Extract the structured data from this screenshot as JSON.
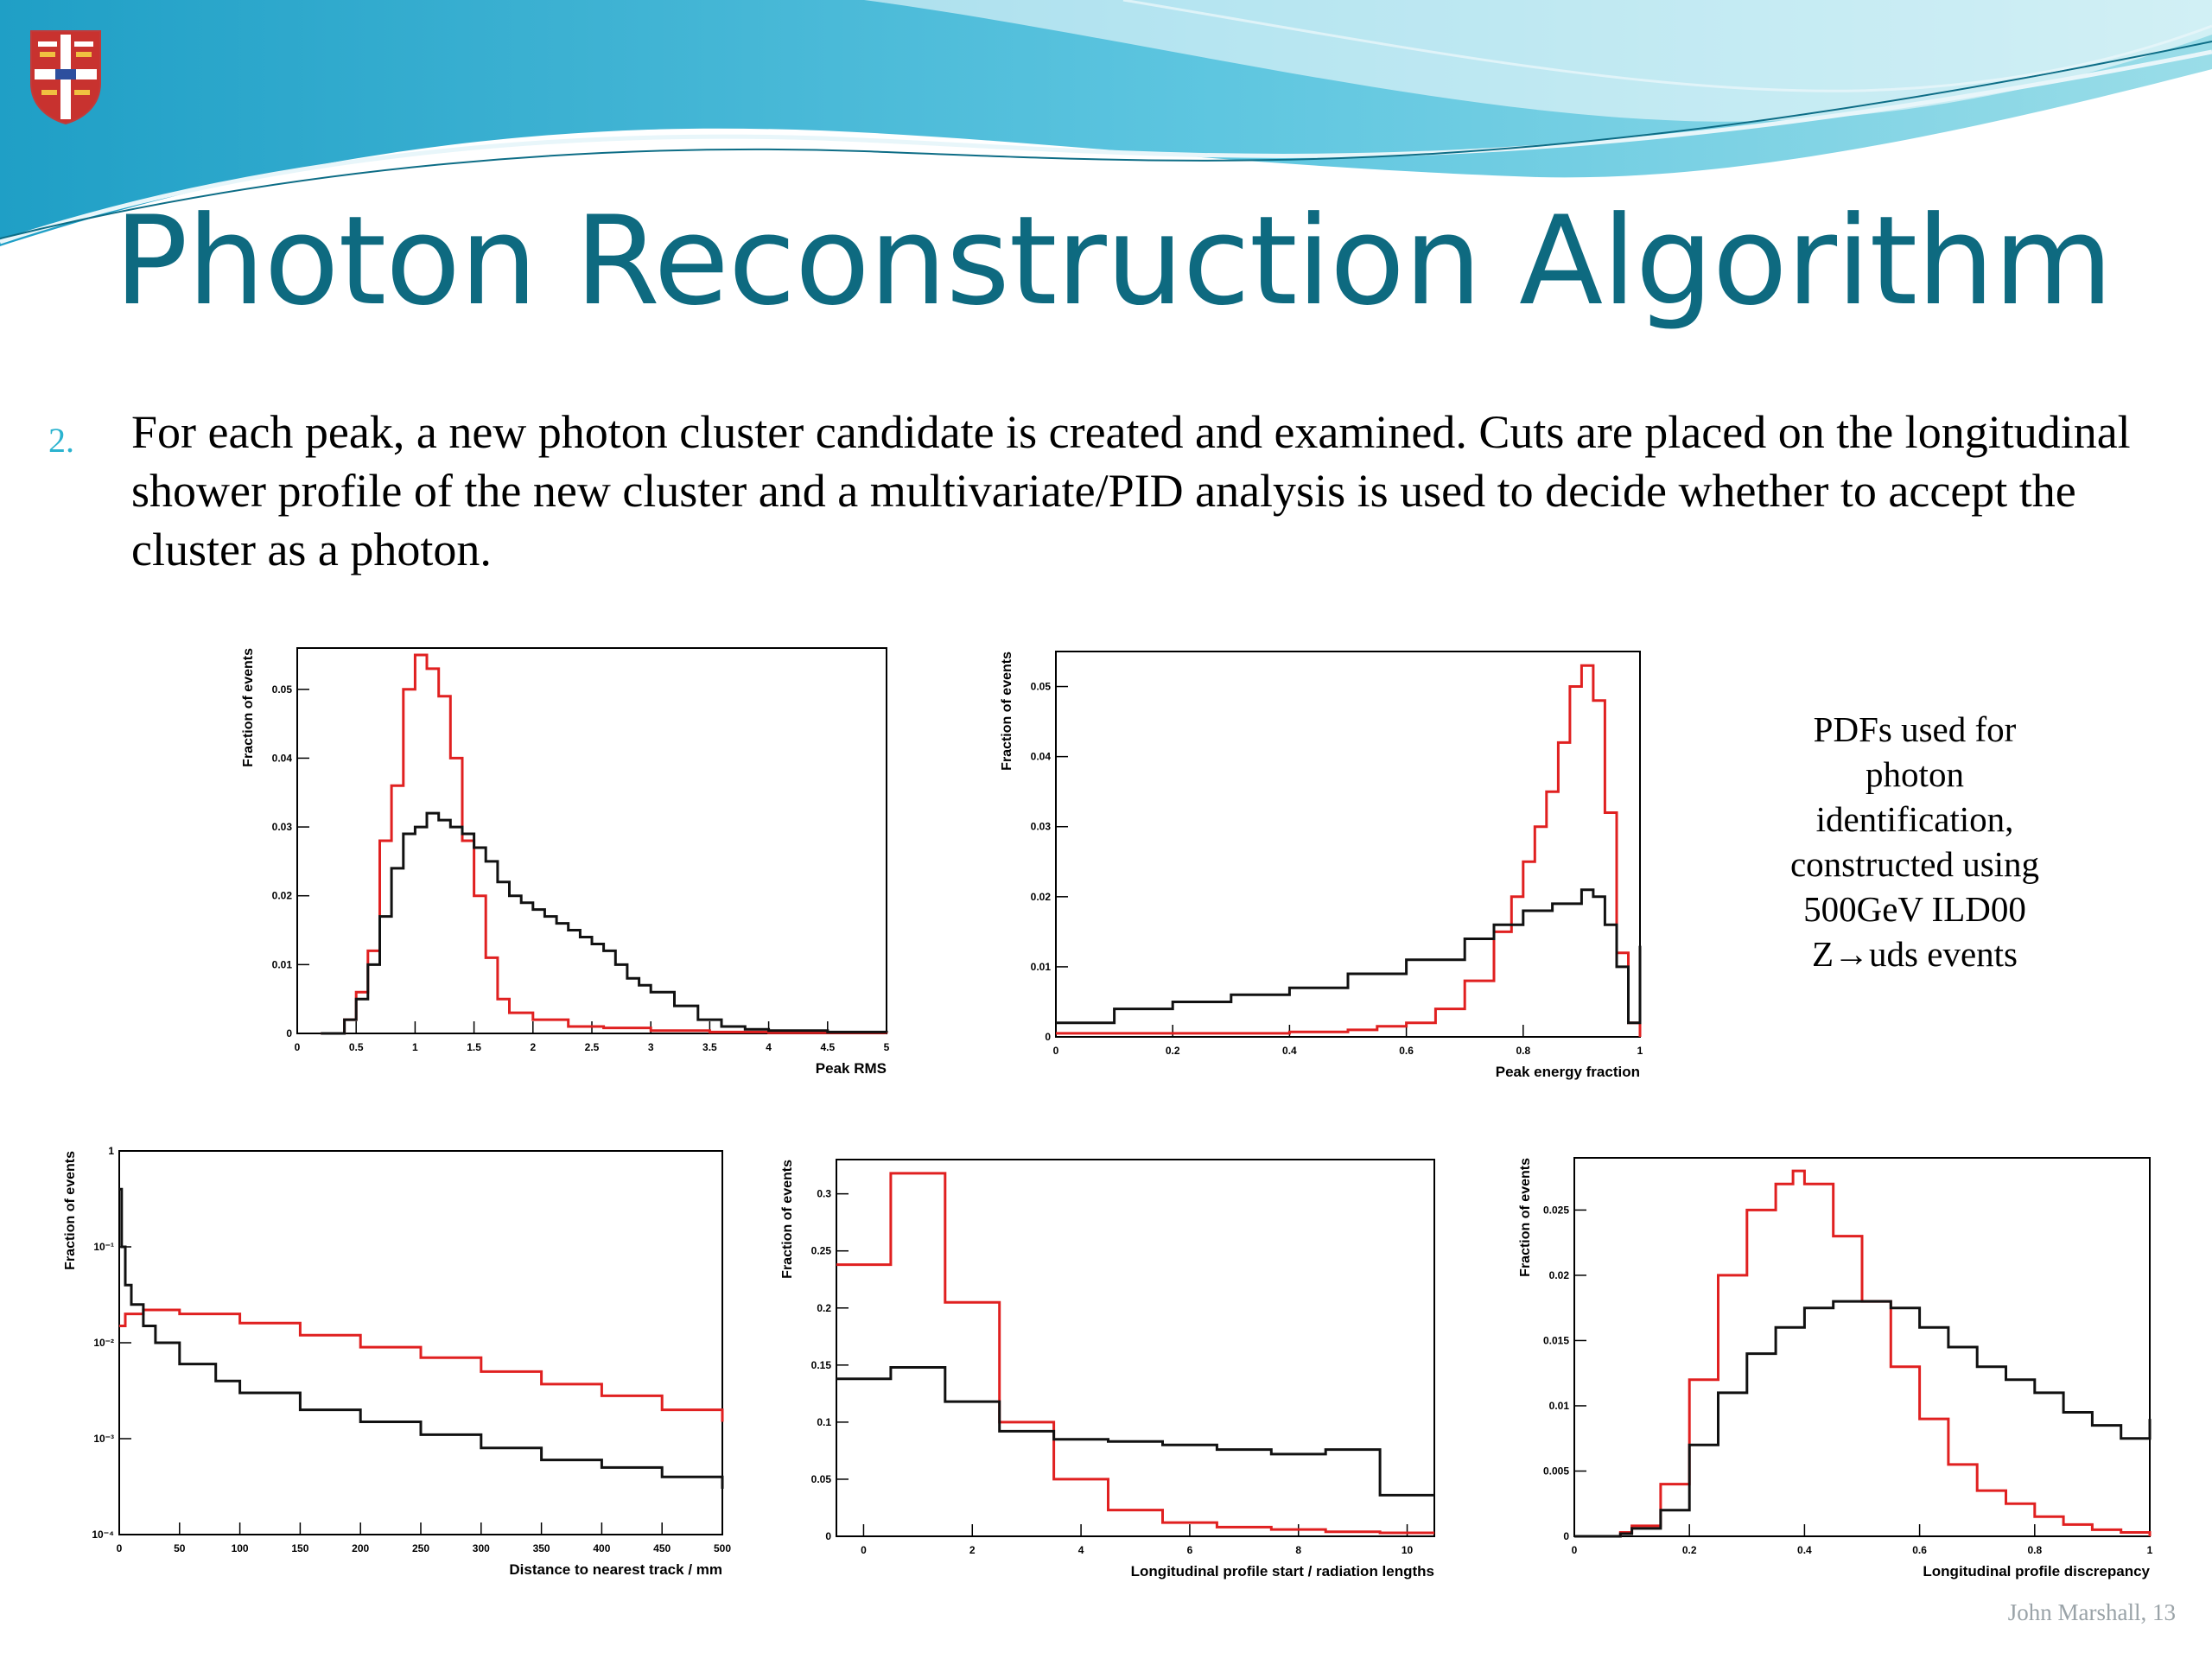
{
  "slide": {
    "title": "Photon Reconstruction Algorithm",
    "bullet_number": "2.",
    "bullet_text": "For each peak, a new photon cluster candidate is created and examined. Cuts are placed on the longitudinal shower profile of the new cluster and a multivariate/PID analysis is used to decide whether to accept the cluster as a photon.",
    "caption_lines": [
      "PDFs used for",
      "photon",
      "identification,",
      "constructed using",
      "500GeV ILD00",
      "Z→uds events"
    ],
    "footer": "John Marshall, 13",
    "colors": {
      "title": "#0e6a80",
      "bullet_number": "#2bb3cf",
      "signal": "#e02020",
      "background": "#111111",
      "footer": "#9aa3a8"
    },
    "icons": [
      "university-crest-icon"
    ]
  },
  "chart_data": [
    {
      "id": "peak-rms",
      "type": "line",
      "step": true,
      "title": "",
      "xlabel": "Peak RMS",
      "ylabel": "Fraction of events",
      "xlim": [
        0,
        5
      ],
      "ylim": [
        0,
        0.056
      ],
      "log_y": false,
      "xticks": [
        "0",
        "0.5",
        "1",
        "1.5",
        "2",
        "2.5",
        "3",
        "3.5",
        "4",
        "4.5",
        "5"
      ],
      "yticks": [
        "0",
        "0.01",
        "0.02",
        "0.03",
        "0.04",
        "0.05"
      ],
      "series": [
        {
          "color": "#e02020",
          "x": [
            0.2,
            0.4,
            0.5,
            0.6,
            0.7,
            0.8,
            0.9,
            1.0,
            1.1,
            1.2,
            1.3,
            1.4,
            1.5,
            1.6,
            1.7,
            1.8,
            2.0,
            2.3,
            2.6,
            3.0,
            3.5,
            4.0,
            5.0
          ],
          "y": [
            0,
            0.002,
            0.006,
            0.012,
            0.028,
            0.036,
            0.05,
            0.055,
            0.053,
            0.049,
            0.04,
            0.028,
            0.02,
            0.011,
            0.005,
            0.003,
            0.002,
            0.001,
            0.0008,
            0.0004,
            0.0002,
            0.0001,
            0
          ]
        },
        {
          "color": "#111111",
          "x": [
            0.2,
            0.4,
            0.5,
            0.6,
            0.7,
            0.8,
            0.9,
            1.0,
            1.1,
            1.2,
            1.3,
            1.4,
            1.5,
            1.6,
            1.7,
            1.8,
            1.9,
            2.0,
            2.1,
            2.2,
            2.3,
            2.4,
            2.5,
            2.6,
            2.7,
            2.8,
            2.9,
            3.0,
            3.2,
            3.4,
            3.6,
            3.8,
            4.0,
            4.5,
            5.0
          ],
          "y": [
            0,
            0.002,
            0.005,
            0.01,
            0.017,
            0.024,
            0.029,
            0.03,
            0.032,
            0.031,
            0.03,
            0.029,
            0.027,
            0.025,
            0.022,
            0.02,
            0.019,
            0.018,
            0.017,
            0.016,
            0.015,
            0.014,
            0.013,
            0.012,
            0.01,
            0.008,
            0.007,
            0.006,
            0.004,
            0.002,
            0.001,
            0.0006,
            0.0004,
            0.0002,
            0.0001
          ]
        }
      ]
    },
    {
      "id": "peak-energy-fraction",
      "type": "line",
      "step": true,
      "title": "",
      "xlabel": "Peak energy fraction",
      "ylabel": "Fraction of events",
      "xlim": [
        0,
        1
      ],
      "ylim": [
        0,
        0.055
      ],
      "log_y": false,
      "xticks": [
        "0",
        "0.2",
        "0.4",
        "0.6",
        "0.8",
        "1"
      ],
      "yticks": [
        "0",
        "0.01",
        "0.02",
        "0.03",
        "0.04",
        "0.05"
      ],
      "series": [
        {
          "color": "#e02020",
          "x": [
            0.0,
            0.2,
            0.4,
            0.5,
            0.55,
            0.6,
            0.65,
            0.7,
            0.75,
            0.78,
            0.8,
            0.82,
            0.84,
            0.86,
            0.88,
            0.9,
            0.92,
            0.94,
            0.96,
            0.98,
            1.0
          ],
          "y": [
            0.0005,
            0.0005,
            0.0007,
            0.001,
            0.0015,
            0.002,
            0.004,
            0.008,
            0.015,
            0.02,
            0.025,
            0.03,
            0.035,
            0.042,
            0.05,
            0.053,
            0.048,
            0.032,
            0.012,
            0.002,
            0
          ]
        },
        {
          "color": "#111111",
          "x": [
            0.0,
            0.1,
            0.2,
            0.3,
            0.4,
            0.5,
            0.6,
            0.7,
            0.75,
            0.8,
            0.85,
            0.9,
            0.92,
            0.94,
            0.96,
            0.98,
            1.0
          ],
          "y": [
            0.002,
            0.004,
            0.005,
            0.006,
            0.007,
            0.009,
            0.011,
            0.014,
            0.016,
            0.018,
            0.019,
            0.021,
            0.02,
            0.016,
            0.01,
            0.002,
            0.013
          ]
        }
      ]
    },
    {
      "id": "distance-to-track",
      "type": "line",
      "step": true,
      "title": "",
      "xlabel": "Distance to nearest track / mm",
      "ylabel": "Fraction of events",
      "xlim": [
        0,
        500
      ],
      "ylim": [
        0.0001,
        1
      ],
      "log_y": true,
      "xticks": [
        "0",
        "50",
        "100",
        "150",
        "200",
        "250",
        "300",
        "350",
        "400",
        "450",
        "500"
      ],
      "yticks": [
        "10⁻⁴",
        "10⁻³",
        "10⁻²",
        "10⁻¹",
        "1"
      ],
      "series": [
        {
          "color": "#e02020",
          "x": [
            0,
            5,
            20,
            50,
            100,
            150,
            200,
            250,
            300,
            350,
            400,
            450,
            500
          ],
          "y": [
            0.015,
            0.02,
            0.022,
            0.02,
            0.016,
            0.012,
            0.009,
            0.007,
            0.005,
            0.0037,
            0.0028,
            0.002,
            0.0015
          ]
        },
        {
          "color": "#111111",
          "x": [
            0,
            2,
            5,
            10,
            20,
            30,
            50,
            80,
            100,
            150,
            200,
            250,
            300,
            350,
            400,
            450,
            500
          ],
          "y": [
            0.4,
            0.1,
            0.04,
            0.025,
            0.015,
            0.01,
            0.006,
            0.004,
            0.003,
            0.002,
            0.0015,
            0.0011,
            0.0008,
            0.0006,
            0.0005,
            0.0004,
            0.0003
          ]
        }
      ]
    },
    {
      "id": "profile-start",
      "type": "line",
      "step": true,
      "title": "",
      "xlabel": "Longitudinal profile start / radiation lengths",
      "ylabel": "Fraction of events",
      "xlim": [
        -0.5,
        10.5
      ],
      "ylim": [
        0,
        0.33
      ],
      "log_y": false,
      "xticks": [
        "0",
        "2",
        "4",
        "6",
        "8",
        "10"
      ],
      "yticks": [
        "0",
        "0.05",
        "0.1",
        "0.15",
        "0.2",
        "0.25",
        "0.3"
      ],
      "series": [
        {
          "color": "#e02020",
          "x": [
            -0.5,
            0.5,
            1.5,
            2.5,
            3.5,
            4.5,
            5.5,
            6.5,
            7.5,
            8.5,
            9.5,
            10.5
          ],
          "y": [
            0.238,
            0.318,
            0.205,
            0.1,
            0.05,
            0.023,
            0.012,
            0.008,
            0.006,
            0.004,
            0.003,
            0.003
          ]
        },
        {
          "color": "#111111",
          "x": [
            -0.5,
            0.5,
            1.5,
            2.5,
            3.5,
            4.5,
            5.5,
            6.5,
            7.5,
            8.5,
            9.5,
            10.5
          ],
          "y": [
            0.138,
            0.148,
            0.118,
            0.092,
            0.085,
            0.083,
            0.08,
            0.076,
            0.072,
            0.076,
            0.036,
            0.036
          ]
        }
      ]
    },
    {
      "id": "profile-discrepancy",
      "type": "line",
      "step": true,
      "title": "",
      "xlabel": "Longitudinal profile discrepancy",
      "ylabel": "Fraction of events",
      "xlim": [
        0,
        1
      ],
      "ylim": [
        0,
        0.029
      ],
      "log_y": false,
      "xticks": [
        "0",
        "0.2",
        "0.4",
        "0.6",
        "0.8",
        "1"
      ],
      "yticks": [
        "0",
        "0.005",
        "0.01",
        "0.015",
        "0.02",
        "0.025"
      ],
      "series": [
        {
          "color": "#e02020",
          "x": [
            0.0,
            0.05,
            0.08,
            0.1,
            0.15,
            0.2,
            0.25,
            0.3,
            0.35,
            0.38,
            0.4,
            0.45,
            0.5,
            0.55,
            0.6,
            0.65,
            0.7,
            0.75,
            0.8,
            0.85,
            0.9,
            0.95,
            1.0
          ],
          "y": [
            0,
            0,
            0.0003,
            0.0008,
            0.004,
            0.012,
            0.02,
            0.025,
            0.027,
            0.028,
            0.027,
            0.023,
            0.018,
            0.013,
            0.009,
            0.0055,
            0.0035,
            0.0025,
            0.0015,
            0.0009,
            0.0005,
            0.0003,
            0
          ]
        },
        {
          "color": "#111111",
          "x": [
            0.0,
            0.08,
            0.1,
            0.15,
            0.2,
            0.25,
            0.3,
            0.35,
            0.4,
            0.45,
            0.5,
            0.55,
            0.6,
            0.65,
            0.7,
            0.75,
            0.8,
            0.85,
            0.9,
            0.95,
            1.0
          ],
          "y": [
            0,
            0.0002,
            0.0006,
            0.002,
            0.007,
            0.011,
            0.014,
            0.016,
            0.0175,
            0.018,
            0.018,
            0.0175,
            0.016,
            0.0145,
            0.013,
            0.012,
            0.011,
            0.0095,
            0.0085,
            0.0075,
            0.009
          ]
        }
      ]
    }
  ]
}
